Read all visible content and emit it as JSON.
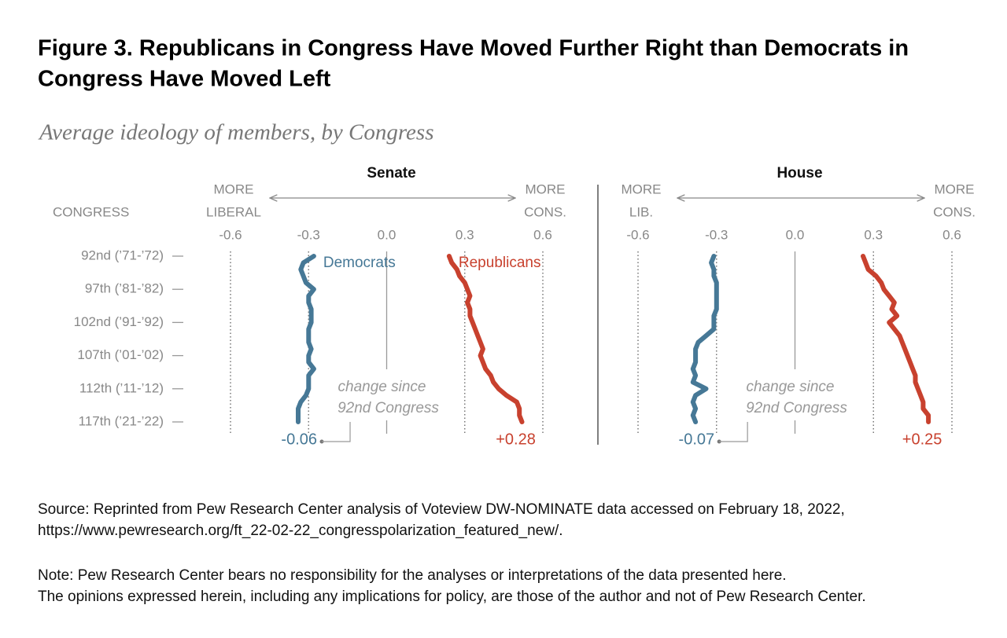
{
  "chart_data": {
    "type": "line",
    "title": [
      "Figure 3. Republicans in Congress Have Moved Further Right than Democrats in",
      "Congress Have Moved Left"
    ],
    "subtitle": "Average ideology of members, by Congress",
    "y_label": "CONGRESS",
    "categories": [
      "92nd (’71-’72)",
      null,
      null,
      null,
      null,
      "97th (’81-’82)",
      null,
      null,
      null,
      null,
      "102nd (’91-’92)",
      null,
      null,
      null,
      null,
      "107th (’01-’02)",
      null,
      null,
      null,
      null,
      "112th (’11-’12)",
      null,
      null,
      null,
      null,
      "117th (’21-’22)"
    ],
    "annotation": [
      "change since",
      "92nd Congress"
    ],
    "panels": [
      {
        "title": "Senate",
        "left_label": [
          "MORE",
          "LIBERAL"
        ],
        "right_label": [
          "MORE",
          "CONS."
        ],
        "xlim": [
          -0.6,
          0.6
        ],
        "xticks": [
          -0.6,
          -0.3,
          {
            "value": 0,
            "label": "0.0"
          },
          0.3,
          0.6
        ],
        "series": [
          {
            "name": "Democrats",
            "color": "#467896",
            "change": -0.06,
            "values": [
              -0.28,
              -0.32,
              -0.33,
              -0.32,
              -0.31,
              -0.28,
              -0.3,
              -0.3,
              -0.29,
              -0.29,
              -0.29,
              -0.3,
              -0.3,
              -0.3,
              -0.29,
              -0.3,
              -0.3,
              -0.28,
              -0.3,
              -0.3,
              -0.3,
              -0.31,
              -0.33,
              -0.34,
              -0.34,
              -0.34
            ]
          },
          {
            "name": "Republicans",
            "color": "#c8412e",
            "change": {
              "value": 0.28,
              "label": "+0.28"
            },
            "values": [
              0.24,
              0.25,
              0.27,
              0.28,
              0.3,
              0.31,
              0.32,
              0.31,
              0.32,
              0.32,
              0.33,
              0.34,
              0.35,
              0.36,
              0.37,
              0.36,
              0.37,
              0.38,
              0.4,
              0.41,
              0.43,
              0.46,
              0.5,
              0.51,
              0.51,
              0.52
            ]
          }
        ]
      },
      {
        "title": "House",
        "left_label": [
          "MORE",
          "LIB."
        ],
        "right_label": [
          "MORE",
          "CONS."
        ],
        "xlim": [
          -0.6,
          0.6
        ],
        "xticks": [
          -0.6,
          -0.3,
          {
            "value": 0,
            "label": "0.0"
          },
          0.3,
          0.6
        ],
        "series": [
          {
            "color": "#467896",
            "change": -0.07,
            "values": [
              -0.31,
              -0.32,
              -0.31,
              -0.31,
              -0.3,
              -0.3,
              -0.3,
              -0.3,
              -0.3,
              -0.31,
              -0.31,
              -0.31,
              -0.34,
              -0.37,
              -0.38,
              -0.38,
              -0.38,
              -0.39,
              -0.38,
              -0.39,
              -0.34,
              -0.38,
              -0.39,
              -0.38,
              -0.39,
              -0.38
            ]
          },
          {
            "color": "#c8412e",
            "change": {
              "value": 0.25,
              "label": "+0.25"
            },
            "values": [
              0.26,
              0.27,
              0.28,
              0.31,
              0.33,
              0.34,
              0.36,
              0.38,
              0.37,
              0.39,
              0.36,
              0.38,
              0.4,
              0.41,
              0.42,
              0.43,
              0.44,
              0.45,
              0.46,
              0.46,
              0.47,
              0.48,
              0.49,
              0.49,
              0.51,
              0.51
            ]
          }
        ]
      }
    ],
    "source": [
      "Source: Reprinted from Pew Research Center analysis of Voteview DW-NOMINATE data accessed on February 18, 2022,",
      "https://www.pewresearch.org/ft_22-02-22_congresspolarization_featured_new/."
    ],
    "note": [
      "Note: Pew Research Center bears no responsibility for the analyses or interpretations of the data presented here.",
      "The opinions expressed herein, including any implications for policy, are those of the author and not of Pew Research Center."
    ]
  }
}
